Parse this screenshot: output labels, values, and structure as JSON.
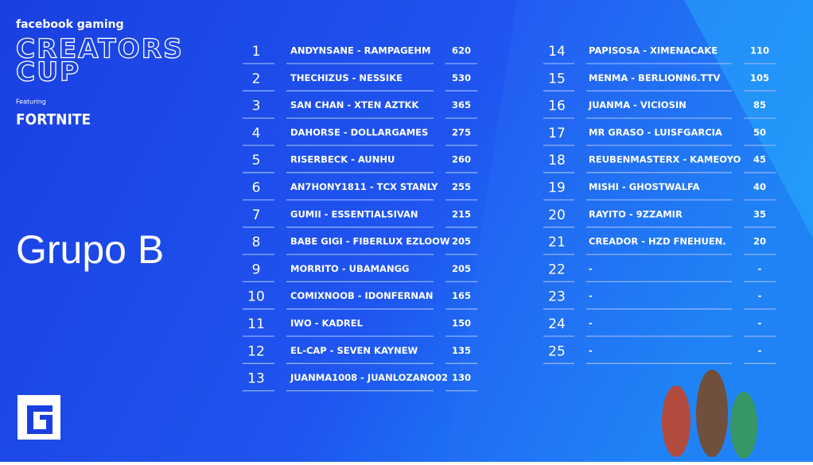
{
  "brand": {
    "network": "facebook gaming",
    "event_lines": [
      "CREATORS",
      "CUP"
    ],
    "featuring": "Featuring",
    "game": "FORTNITE"
  },
  "group": "Grupo B",
  "standings": [
    {
      "rank": 1,
      "team": "ANDYNSANE - RAMPAGEHM",
      "points": 620
    },
    {
      "rank": 2,
      "team": "THECHIZUS - NESSIKE",
      "points": 530
    },
    {
      "rank": 3,
      "team": "SAN CHAN - XTEN AZTKK",
      "points": 365
    },
    {
      "rank": 4,
      "team": "DAHORSE - DOLLARGAMES",
      "points": 275
    },
    {
      "rank": 5,
      "team": "RISERBECK - AUNHU",
      "points": 260
    },
    {
      "rank": 6,
      "team": "AN7HONY1811 - TCX STANLY",
      "points": 255
    },
    {
      "rank": 7,
      "team": "GUMII - ESSENTIALSIVAN",
      "points": 215
    },
    {
      "rank": 8,
      "team": "BABE GIGI - FIBERLUX EZLOOW",
      "points": 205
    },
    {
      "rank": 9,
      "team": "MORRITO - UBAMANGG",
      "points": 205
    },
    {
      "rank": 10,
      "team": "COMIXNOOB - IDONFERNAN",
      "points": 165
    },
    {
      "rank": 11,
      "team": "IWO - KADREL",
      "points": 150
    },
    {
      "rank": 12,
      "team": "EL-CAP - SEVEN KAYNEW",
      "points": 135
    },
    {
      "rank": 13,
      "team": "JUANMA1008 - JUANLOZANO02",
      "points": 130
    },
    {
      "rank": 14,
      "team": "PAPISOSA - XIMENACAKE",
      "points": 110
    },
    {
      "rank": 15,
      "team": "MENMA - BERLIONN6.TTV",
      "points": 105
    },
    {
      "rank": 16,
      "team": "JUANMA - VICIOSIN",
      "points": 85
    },
    {
      "rank": 17,
      "team": "MR GRASO - LUISFGARCIA",
      "points": 50
    },
    {
      "rank": 18,
      "team": "REUBENMASTERX - KAMEOYO",
      "points": 45
    },
    {
      "rank": 19,
      "team": "MISHI - GHOSTWALFA",
      "points": 40
    },
    {
      "rank": 20,
      "team": "RAYITO - 9ZZAMIR",
      "points": 35
    },
    {
      "rank": 21,
      "team": "CREADOR - HZD FNEHUEN.",
      "points": 20
    },
    {
      "rank": 22,
      "team": "-",
      "points": "-"
    },
    {
      "rank": 23,
      "team": "-",
      "points": "-"
    },
    {
      "rank": 24,
      "team": "-",
      "points": "-"
    },
    {
      "rank": 25,
      "team": "-",
      "points": "-"
    }
  ]
}
